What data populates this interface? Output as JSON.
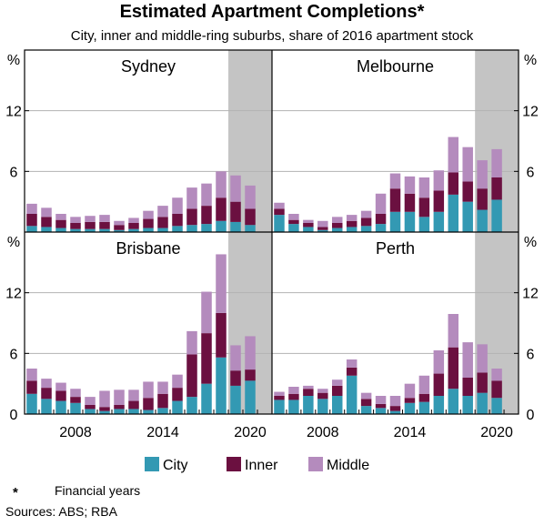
{
  "title": "Estimated Apartment Completions*",
  "subtitle": "City, inner and middle-ring suburbs, share of 2016 apartment stock",
  "unit": "%",
  "y_ticks": [
    "0",
    "6",
    "12"
  ],
  "x_ticks": [
    "2008",
    "2014",
    "2020"
  ],
  "footnote": {
    "marker": "*",
    "text": "Financial years"
  },
  "sources": "Sources: ABS; RBA",
  "colors": {
    "City": "#3399b3",
    "Inner": "#6b1040",
    "Middle": "#b48bbd",
    "shade": "#c4c4c4"
  },
  "chart_data": {
    "type": "bar",
    "stacked": true,
    "ylim": [
      0,
      18
    ],
    "shaded_from": 2019,
    "categories": [
      2005,
      2006,
      2007,
      2008,
      2009,
      2010,
      2011,
      2012,
      2013,
      2014,
      2015,
      2016,
      2017,
      2018,
      2019,
      2020,
      2021
    ],
    "legend": [
      "City",
      "Inner",
      "Middle"
    ],
    "panels": [
      {
        "name": "Sydney",
        "series": [
          {
            "name": "City",
            "values": [
              0.6,
              0.5,
              0.4,
              0.3,
              0.3,
              0.3,
              0.2,
              0.3,
              0.4,
              0.4,
              0.6,
              0.7,
              0.8,
              1.1,
              1.0,
              0.7,
              0.0
            ]
          },
          {
            "name": "Inner",
            "values": [
              1.2,
              1.0,
              0.8,
              0.6,
              0.7,
              0.7,
              0.5,
              0.6,
              0.9,
              1.1,
              1.2,
              1.6,
              1.8,
              2.3,
              2.0,
              1.6,
              0.0
            ]
          },
          {
            "name": "Middle",
            "values": [
              1.0,
              0.9,
              0.6,
              0.6,
              0.6,
              0.7,
              0.4,
              0.5,
              0.8,
              1.1,
              1.6,
              2.1,
              2.2,
              2.6,
              2.6,
              2.3,
              0.0
            ]
          }
        ]
      },
      {
        "name": "Melbourne",
        "series": [
          {
            "name": "City",
            "values": [
              1.7,
              0.8,
              0.5,
              0.2,
              0.4,
              0.5,
              0.6,
              0.8,
              2.0,
              2.0,
              1.5,
              2.0,
              3.7,
              3.0,
              2.2,
              3.2,
              0.0
            ]
          },
          {
            "name": "Inner",
            "values": [
              0.6,
              0.4,
              0.4,
              0.3,
              0.5,
              0.6,
              0.8,
              1.0,
              2.3,
              1.8,
              1.9,
              2.1,
              2.2,
              2.0,
              2.1,
              2.2,
              0.0
            ]
          },
          {
            "name": "Middle",
            "values": [
              0.6,
              0.6,
              0.3,
              0.6,
              0.6,
              0.6,
              0.7,
              2.0,
              1.5,
              1.7,
              2.0,
              2.0,
              3.5,
              3.4,
              2.8,
              2.8,
              0.0
            ]
          }
        ]
      },
      {
        "name": "Brisbane",
        "series": [
          {
            "name": "City",
            "values": [
              2.0,
              1.5,
              1.3,
              1.1,
              0.5,
              0.3,
              0.5,
              0.5,
              0.4,
              0.6,
              1.3,
              1.7,
              3.0,
              5.6,
              2.8,
              3.3,
              0.0
            ]
          },
          {
            "name": "Inner",
            "values": [
              1.3,
              1.1,
              1.0,
              0.6,
              0.4,
              0.4,
              0.4,
              0.8,
              1.2,
              1.4,
              1.3,
              4.2,
              5.0,
              4.4,
              1.5,
              1.1,
              0.0
            ]
          },
          {
            "name": "Middle",
            "values": [
              1.2,
              0.9,
              0.8,
              0.8,
              0.8,
              1.6,
              1.5,
              1.1,
              1.6,
              1.2,
              1.3,
              2.3,
              4.1,
              5.8,
              2.5,
              3.3,
              0.0
            ]
          }
        ]
      },
      {
        "name": "Perth",
        "series": [
          {
            "name": "City",
            "values": [
              1.4,
              1.4,
              1.8,
              1.5,
              1.8,
              3.8,
              0.8,
              0.6,
              0.3,
              1.1,
              1.2,
              1.8,
              2.5,
              1.8,
              2.1,
              1.6,
              0.0
            ]
          },
          {
            "name": "Inner",
            "values": [
              0.4,
              0.6,
              0.7,
              0.6,
              1.0,
              0.8,
              0.7,
              0.4,
              0.5,
              0.5,
              0.8,
              2.2,
              4.1,
              1.8,
              2.0,
              1.7,
              0.0
            ]
          },
          {
            "name": "Middle",
            "values": [
              0.4,
              0.7,
              0.3,
              0.4,
              0.6,
              0.8,
              0.6,
              0.8,
              1.0,
              1.4,
              1.8,
              2.3,
              3.3,
              3.5,
              2.8,
              1.2,
              0.0
            ]
          }
        ]
      }
    ]
  }
}
